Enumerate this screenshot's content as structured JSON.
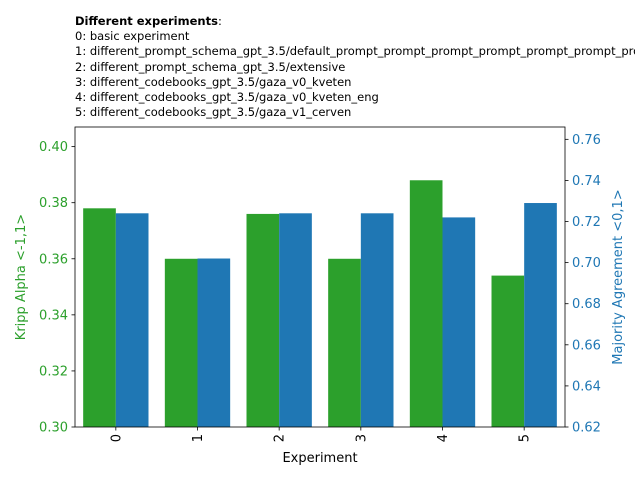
{
  "header": {
    "title_bold": "Different experiments",
    "title_suffix": ":",
    "lines": [
      "0: basic experiment",
      "1: different_prompt_schema_gpt_3.5/default_prompt_prompt_prompt_prompt_prompt_prompt_pro",
      "2: different_prompt_schema_gpt_3.5/extensive",
      "3: different_codebooks_gpt_3.5/gaza_v0_kveten",
      "4: different_codebooks_gpt_3.5/gaza_v0_kveten_eng",
      "5: different_codebooks_gpt_3.5/gaza_v1_cerven"
    ]
  },
  "chart_data": {
    "type": "bar",
    "categories": [
      "0",
      "1",
      "2",
      "3",
      "4",
      "5"
    ],
    "xlabel": "Experiment",
    "y_left": {
      "label": "Kripp Alpha <-1,1>",
      "lim": [
        0.3,
        0.407
      ],
      "ticks": [
        0.3,
        0.32,
        0.34,
        0.36,
        0.38,
        0.4
      ],
      "tick_labels": [
        "0.30",
        "0.32",
        "0.34",
        "0.36",
        "0.38",
        "0.40"
      ],
      "color": "#2ca02c"
    },
    "y_right": {
      "label": "Majority Agreement <0,1>",
      "lim": [
        0.62,
        0.766
      ],
      "ticks": [
        0.62,
        0.64,
        0.66,
        0.68,
        0.7,
        0.72,
        0.74,
        0.76
      ],
      "tick_labels": [
        "0.62",
        "0.64",
        "0.66",
        "0.68",
        "0.70",
        "0.72",
        "0.74",
        "0.76"
      ],
      "color": "#1f77b4"
    },
    "series": [
      {
        "axis": "left",
        "color": "#2ca02c",
        "values": [
          0.378,
          0.36,
          0.376,
          0.36,
          0.388,
          0.354
        ]
      },
      {
        "axis": "right",
        "color": "#1f77b4",
        "values": [
          0.724,
          0.702,
          0.724,
          0.724,
          0.722,
          0.729
        ]
      }
    ],
    "grid": false,
    "legend": "none"
  }
}
